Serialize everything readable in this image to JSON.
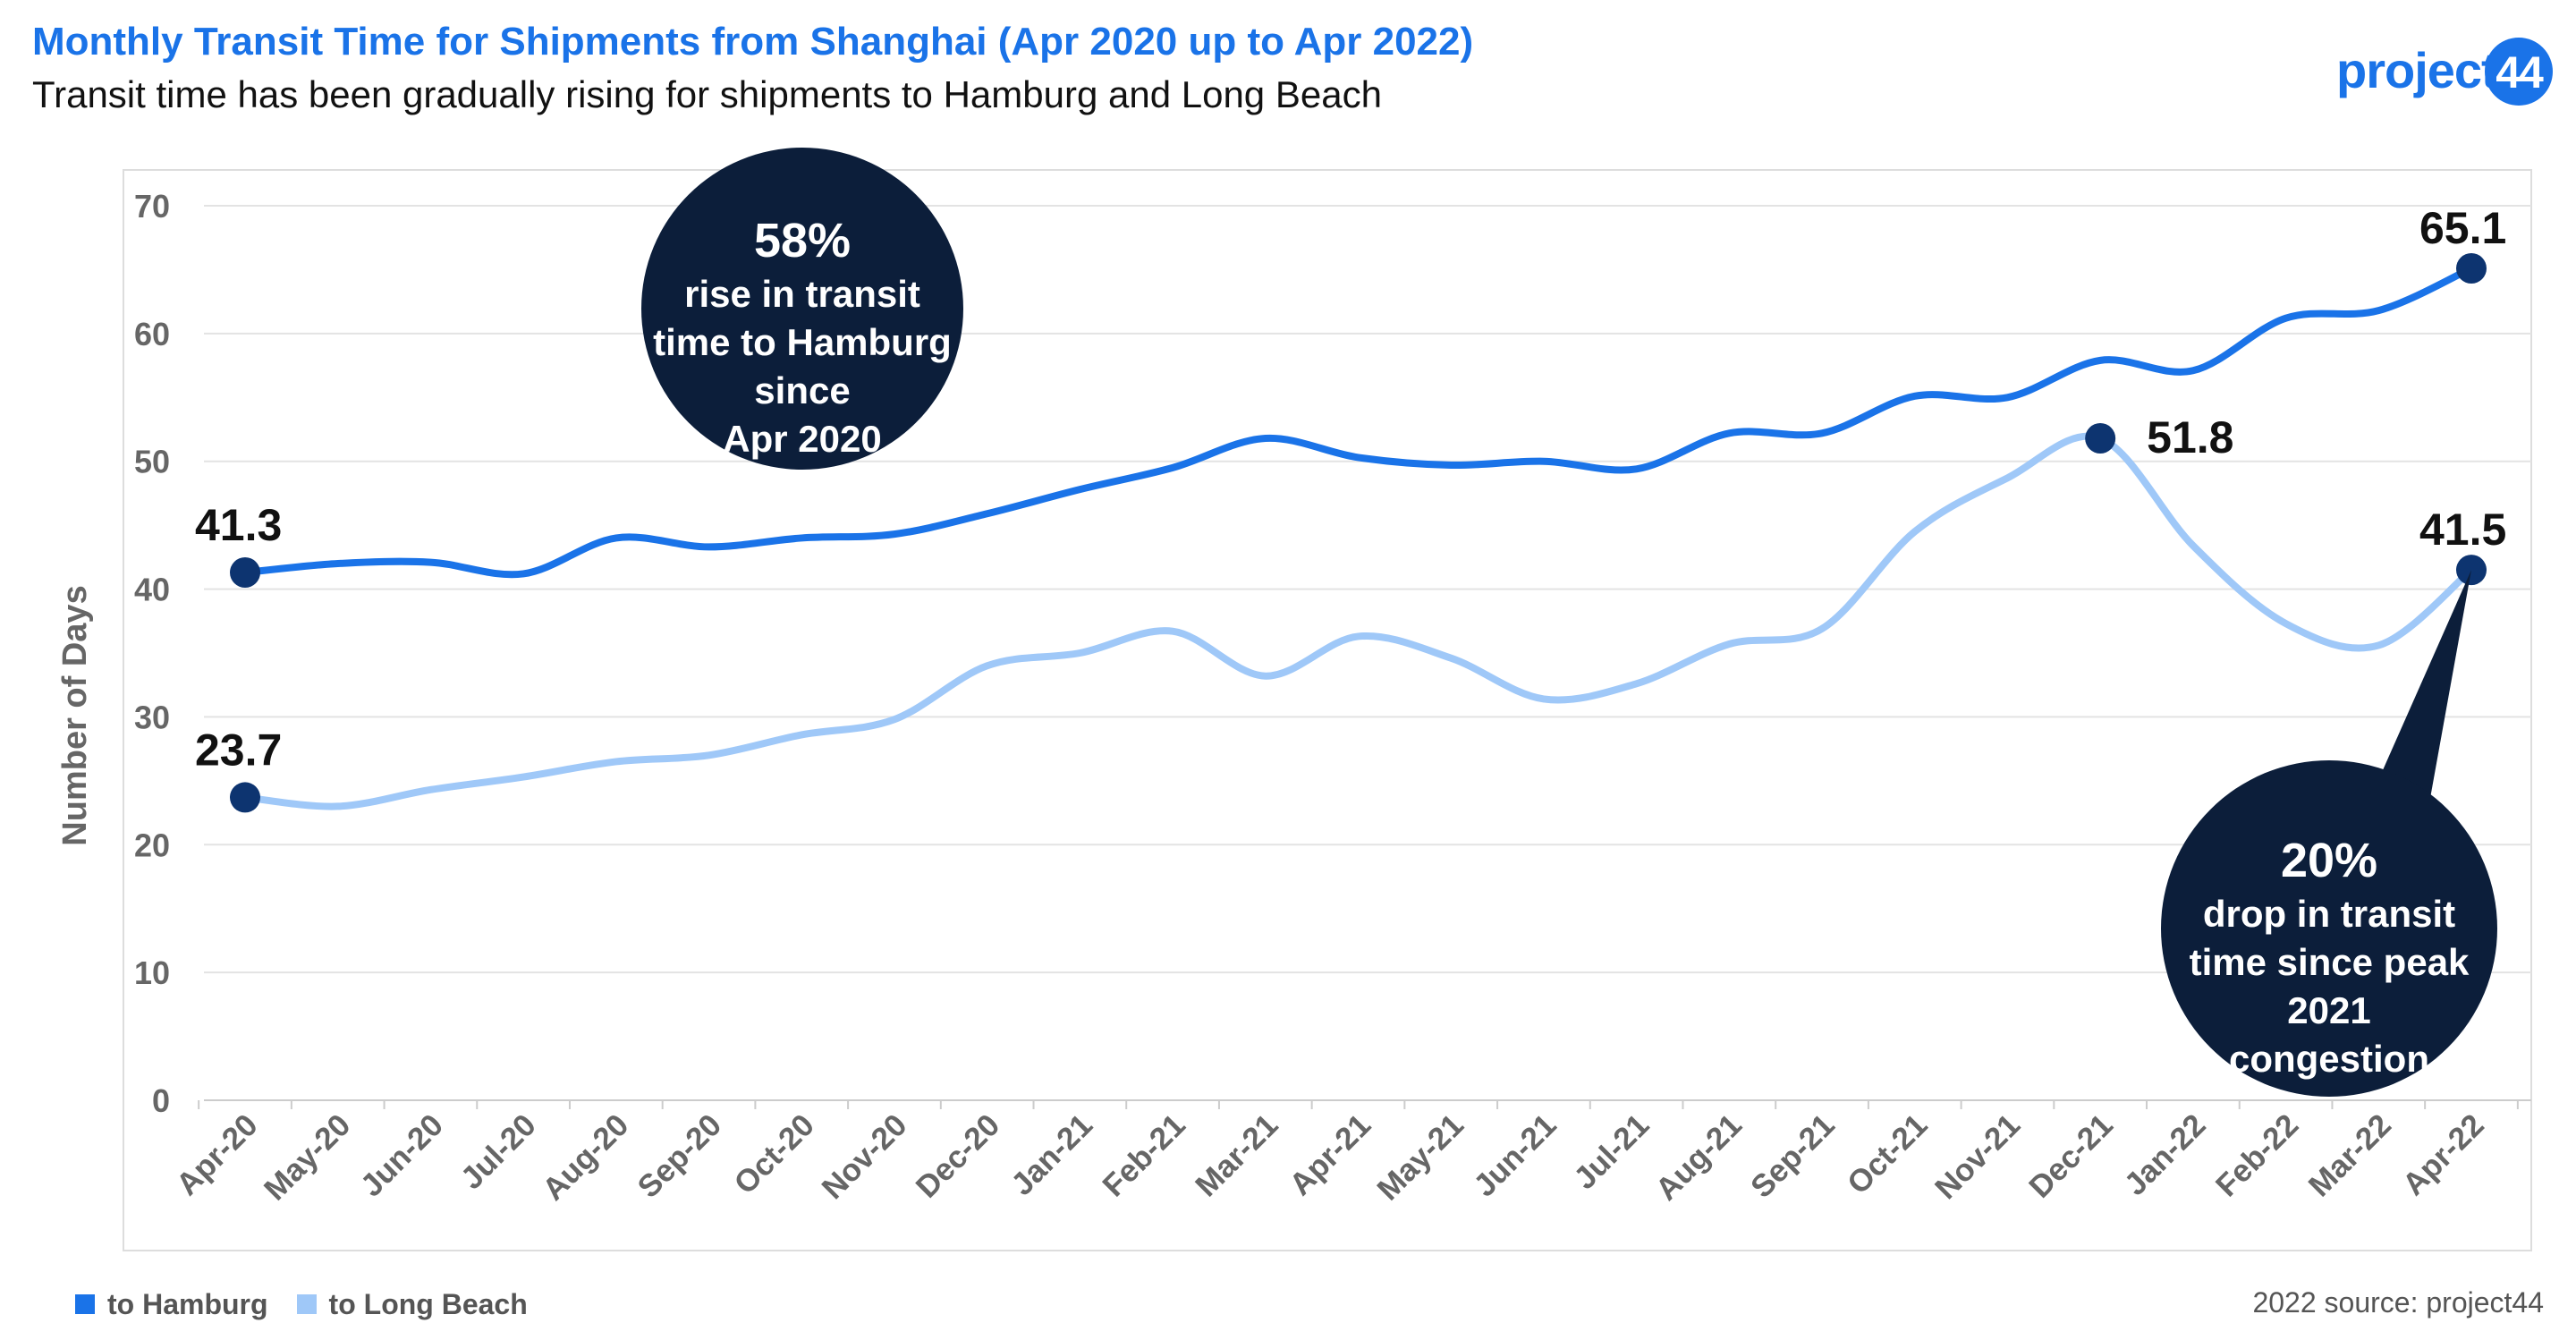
{
  "header": {
    "title": "Monthly Transit Time for Shipments from Shanghai (Apr 2020 up to Apr 2022)",
    "subtitle": "Transit time has been gradually rising for shipments to Hamburg and Long Beach"
  },
  "logo": {
    "word": "project",
    "number": "44"
  },
  "footer": {
    "source": "2022 source: project44"
  },
  "colors": {
    "hamburg": "#1a73e8",
    "long_beach": "#9fc8f8",
    "marker": "#0d3470",
    "callout": "#0c1e3a",
    "grid": "#e3e3e3",
    "axis_text": "#666666"
  },
  "chart_data": {
    "type": "line",
    "title": "Monthly Transit Time for Shipments from Shanghai (Apr 2020 up to Apr 2022)",
    "subtitle": "Transit time has been gradually rising for shipments to Hamburg and Long Beach",
    "xlabel": "",
    "ylabel": "Number of Days",
    "ylim": [
      0,
      70
    ],
    "yticks": [
      0,
      10,
      20,
      30,
      40,
      50,
      60,
      70
    ],
    "grid": true,
    "legend": "bottom-left",
    "categories": [
      "Apr-20",
      "May-20",
      "Jun-20",
      "Jul-20",
      "Aug-20",
      "Sep-20",
      "Oct-20",
      "Nov-20",
      "Dec-20",
      "Jan-21",
      "Feb-21",
      "Mar-21",
      "Apr-21",
      "May-21",
      "Jun-21",
      "Jul-21",
      "Aug-21",
      "Sep-21",
      "Oct-21",
      "Nov-21",
      "Dec-21",
      "Jan-22",
      "Feb-22",
      "Mar-22",
      "Apr-22"
    ],
    "series": [
      {
        "name": "to Hamburg",
        "values": [
          41.3,
          42.0,
          42.1,
          41.2,
          44.0,
          43.3,
          44.0,
          44.3,
          45.9,
          47.8,
          49.5,
          51.8,
          50.3,
          49.7,
          50.0,
          49.4,
          52.2,
          52.2,
          55.1,
          55.0,
          57.9,
          57.1,
          61.2,
          61.8,
          65.1
        ],
        "labels": [
          {
            "index": 0,
            "text": "41.3"
          },
          {
            "index": 24,
            "text": "65.1"
          }
        ]
      },
      {
        "name": "to Long Beach",
        "values": [
          23.7,
          23.0,
          24.3,
          25.3,
          26.5,
          27.0,
          28.6,
          29.8,
          34.0,
          35.0,
          36.7,
          33.2,
          36.3,
          34.6,
          31.4,
          32.6,
          35.7,
          36.9,
          44.5,
          48.7,
          51.8,
          43.4,
          37.3,
          35.6,
          41.5
        ],
        "labels": [
          {
            "index": 0,
            "text": "23.7"
          },
          {
            "index": 20,
            "text": "51.8"
          },
          {
            "index": 24,
            "text": "41.5"
          }
        ]
      }
    ],
    "annotations": [
      {
        "headline": "58%",
        "lines": [
          "rise in transit",
          "time to Hamburg",
          "since",
          "Apr 2020"
        ]
      },
      {
        "headline": "20%",
        "lines": [
          "drop in transit",
          "time since peak",
          "2021",
          "congestion"
        ]
      }
    ]
  }
}
